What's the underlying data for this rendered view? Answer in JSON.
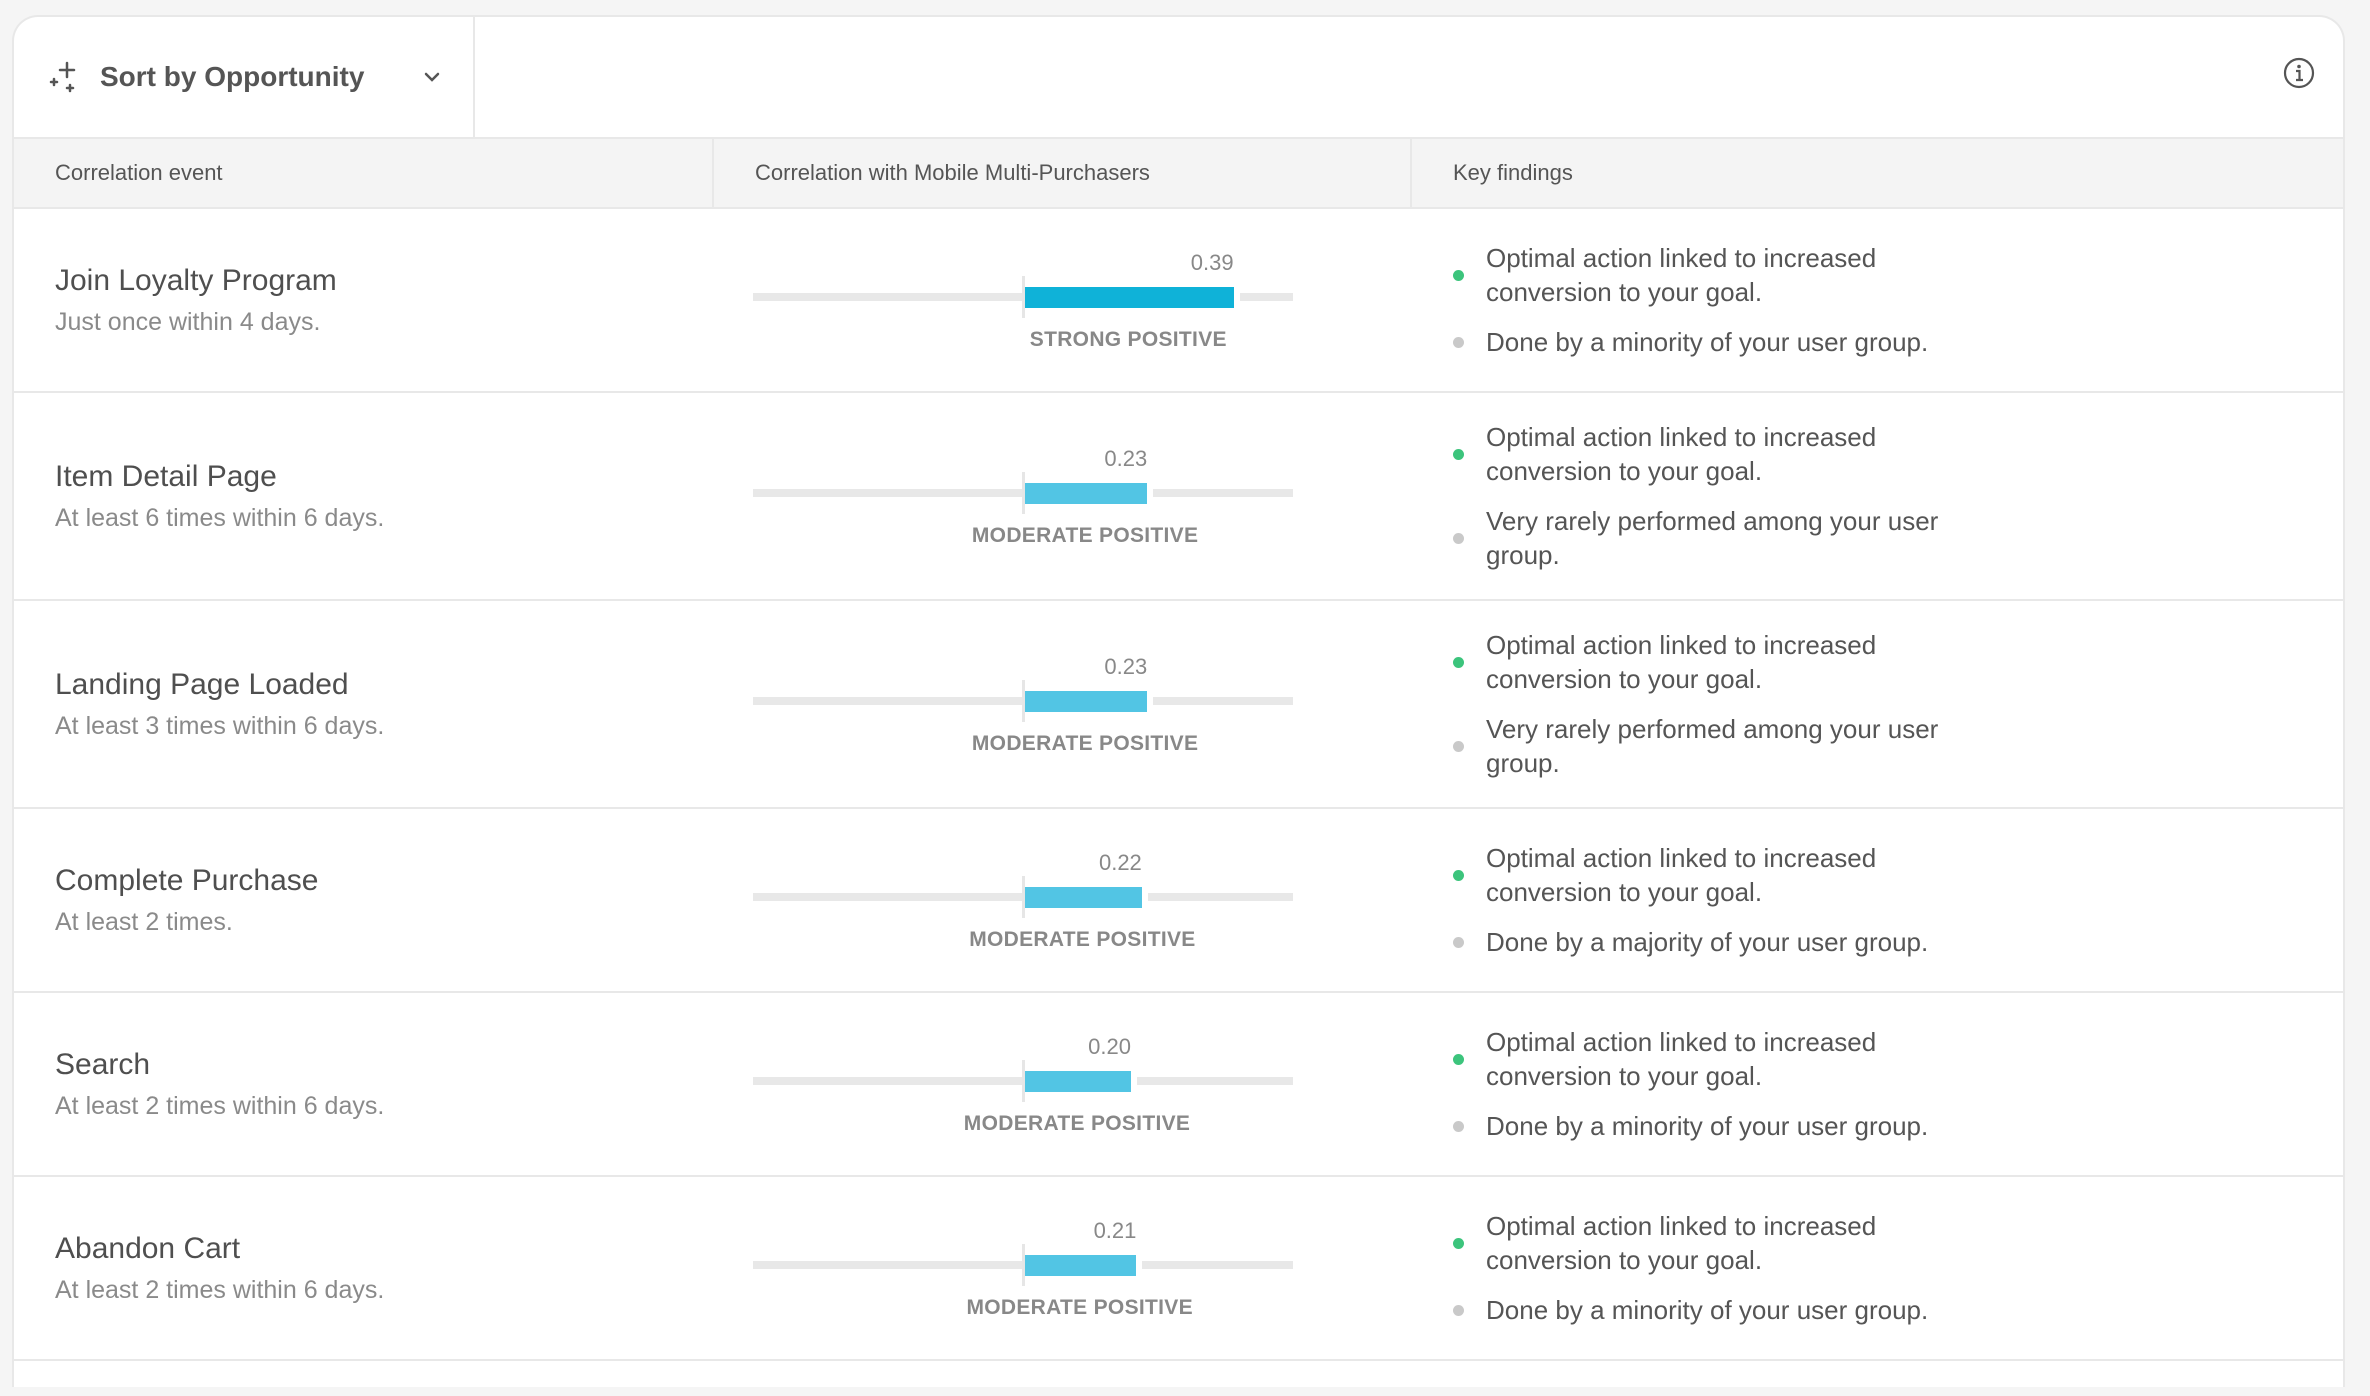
{
  "toolbar": {
    "sort_label": "Sort by Opportunity",
    "sort_icon": "sparkle-icon",
    "info_icon": "info-icon"
  },
  "columns": {
    "event": "Correlation event",
    "correlation": "Correlation with Mobile Multi-Purchasers",
    "findings": "Key findings"
  },
  "colors": {
    "strong": "#0fb2d8",
    "moderate": "#52c5e4",
    "positive_dot": "#3cc47c",
    "neutral_dot": "#c9c9c9"
  },
  "correlation_range": [
    -0.5,
    0.5
  ],
  "rows": [
    {
      "title": "Join Loyalty Program",
      "subtitle": "Just once within 4 days.",
      "value": 0.39,
      "value_label": "0.39",
      "strength": "STRONG POSITIVE",
      "level": "strong",
      "findings": [
        {
          "text": "Optimal action linked to increased conversion to your goal.",
          "type": "positive"
        },
        {
          "text": "Done by a minority of your user group.",
          "type": "neutral"
        }
      ]
    },
    {
      "title": "Item Detail Page",
      "subtitle": "At least 6 times within 6 days.",
      "value": 0.23,
      "value_label": "0.23",
      "strength": "MODERATE POSITIVE",
      "level": "moderate",
      "findings": [
        {
          "text": "Optimal action linked to increased conversion to your goal.",
          "type": "positive"
        },
        {
          "text": "Very rarely performed among your user group.",
          "type": "neutral"
        }
      ]
    },
    {
      "title": "Landing Page Loaded",
      "subtitle": "At least 3 times within 6 days.",
      "value": 0.23,
      "value_label": "0.23",
      "strength": "MODERATE POSITIVE",
      "level": "moderate",
      "findings": [
        {
          "text": "Optimal action linked to increased conversion to your goal.",
          "type": "positive"
        },
        {
          "text": "Very rarely performed among your user group.",
          "type": "neutral"
        }
      ]
    },
    {
      "title": "Complete Purchase",
      "subtitle": "At least 2 times.",
      "value": 0.22,
      "value_label": "0.22",
      "strength": "MODERATE POSITIVE",
      "level": "moderate",
      "findings": [
        {
          "text": "Optimal action linked to increased conversion to your goal.",
          "type": "positive"
        },
        {
          "text": "Done by a majority of your user group.",
          "type": "neutral"
        }
      ]
    },
    {
      "title": "Search",
      "subtitle": "At least 2 times within 6 days.",
      "value": 0.2,
      "value_label": "0.20",
      "strength": "MODERATE POSITIVE",
      "level": "moderate",
      "findings": [
        {
          "text": "Optimal action linked to increased conversion to your goal.",
          "type": "positive"
        },
        {
          "text": "Done by a minority of your user group.",
          "type": "neutral"
        }
      ]
    },
    {
      "title": "Abandon Cart",
      "subtitle": "At least 2 times within 6 days.",
      "value": 0.21,
      "value_label": "0.21",
      "strength": "MODERATE POSITIVE",
      "level": "moderate",
      "findings": [
        {
          "text": "Optimal action linked to increased conversion to your goal.",
          "type": "positive"
        },
        {
          "text": "Done by a minority of your user group.",
          "type": "neutral"
        }
      ]
    }
  ]
}
